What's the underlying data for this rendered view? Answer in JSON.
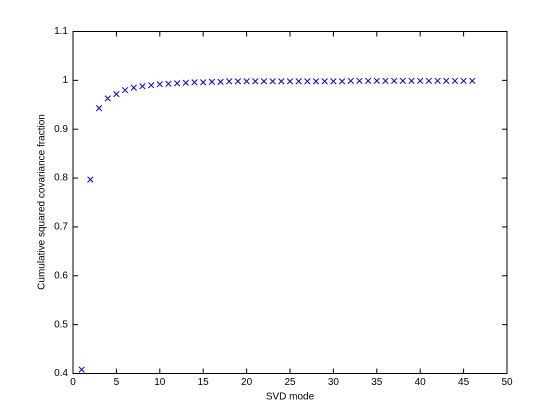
{
  "chart_data": {
    "type": "scatter",
    "xlabel": "SVD mode",
    "ylabel": "Cumulative squared covariance fraction",
    "series": [
      {
        "color": "#0000ff",
        "x": [
          1,
          2,
          3,
          4,
          5,
          6,
          7,
          8,
          9,
          10,
          11,
          12,
          13,
          14,
          15,
          16,
          17,
          18,
          19,
          20,
          21,
          22,
          23,
          24,
          25,
          26,
          27,
          28,
          29,
          30,
          31,
          32,
          33,
          34,
          35,
          36,
          37,
          38,
          39,
          40,
          41,
          42,
          43,
          44,
          45,
          46
        ],
        "values": [
          0.408,
          0.797,
          0.943,
          0.963,
          0.972,
          0.98,
          0.985,
          0.988,
          0.99,
          0.992,
          0.993,
          0.994,
          0.995,
          0.996,
          0.996,
          0.997,
          0.997,
          0.998,
          0.998,
          0.998,
          0.998,
          0.998,
          0.998,
          0.998,
          0.998,
          0.998,
          0.998,
          0.998,
          0.998,
          0.998,
          0.998,
          0.999,
          0.999,
          0.999,
          0.999,
          0.999,
          0.999,
          0.999,
          0.999,
          0.999,
          0.999,
          0.999,
          0.999,
          0.999,
          0.999,
          0.999
        ]
      }
    ],
    "xlim": [
      0,
      50
    ],
    "xticks": [
      0,
      5,
      10,
      15,
      20,
      25,
      30,
      35,
      40,
      45,
      50
    ],
    "ylim": [
      0.4,
      1.1
    ],
    "yticks": [
      0.4,
      0.5,
      0.6,
      0.7,
      0.8,
      0.9,
      1,
      1.1
    ]
  }
}
